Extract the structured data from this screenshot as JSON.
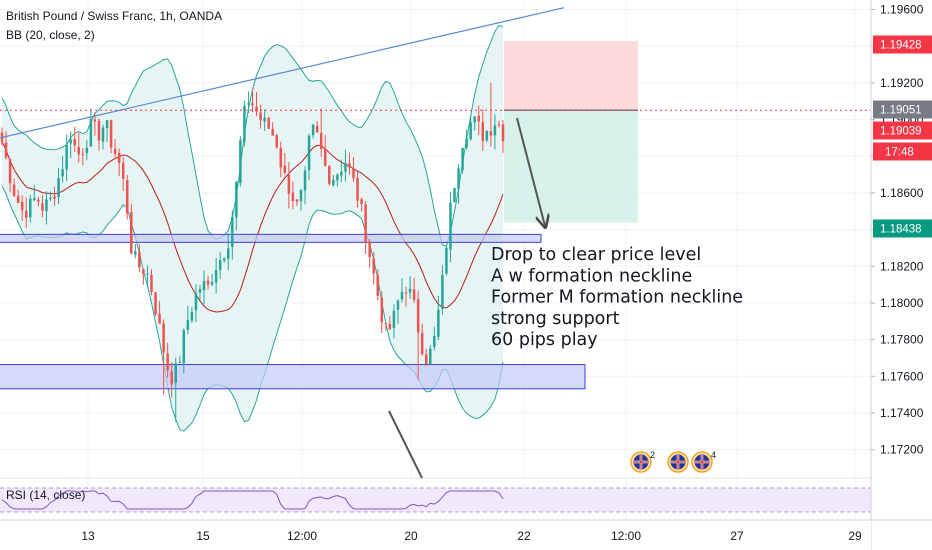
{
  "header": {
    "title": "British Pound / Swiss Franc, 1h, OANDA",
    "indicator": "BB (20, close, 2)"
  },
  "colors": {
    "up": "#26a69a",
    "down": "#ef5350",
    "bb_fill": "#e0f2f1",
    "bb_band": "#26a69a",
    "bb_basis": "#b71c1c",
    "trendline": "#5b86d6",
    "zone_fill": "#c5caf8",
    "zone_stroke": "#3b3fd1",
    "loss_zone": "#fbd3d3",
    "profit_zone": "#d5efe9",
    "rsi": "#7e57c2",
    "rsi_band": "#f1e8fa"
  },
  "chart_data": {
    "type": "candlestick",
    "instrument": "British Pound / Swiss Franc",
    "interval": "1h",
    "broker": "OANDA",
    "ylim": [
      1.171,
      1.1963
    ],
    "y_ticks": [
      1.196,
      1.194,
      1.192,
      1.19,
      1.188,
      1.186,
      1.184,
      1.182,
      1.18,
      1.178,
      1.176,
      1.174,
      1.172
    ],
    "y_tick_labels": [
      "1.19600",
      "1.19400",
      "1.19200",
      "1.19000",
      "1.18800",
      "1.18600",
      "1.18400",
      "1.18200",
      "1.18000",
      "1.17800",
      "1.17600",
      "1.17400",
      "1.17200"
    ],
    "x_ticks": [
      "13",
      "15",
      "12:00",
      "20",
      "22",
      "12:00",
      "27",
      "29"
    ],
    "close_path": [
      1.1888,
      1.1872,
      1.1858,
      1.185,
      1.1852,
      1.1858,
      1.1852,
      1.1855,
      1.1865,
      1.1878,
      1.1893,
      1.188,
      1.1886,
      1.1896,
      1.1892,
      1.1898,
      1.1887,
      1.1877,
      1.186,
      1.1825,
      1.182,
      1.1818,
      1.1805,
      1.1785,
      1.1766,
      1.1758,
      1.1772,
      1.179,
      1.1802,
      1.181,
      1.1808,
      1.182,
      1.1825,
      1.1835,
      1.1858,
      1.1898,
      1.1912,
      1.1905,
      1.1898,
      1.1895,
      1.1888,
      1.187,
      1.1862,
      1.1852,
      1.1862,
      1.1895,
      1.189,
      1.1875,
      1.1868,
      1.1872,
      1.1878,
      1.1868,
      1.1856,
      1.1838,
      1.1818,
      1.18,
      1.1782,
      1.179,
      1.1805,
      1.181,
      1.1798,
      1.178,
      1.1768,
      1.178,
      1.1805,
      1.1842,
      1.1868,
      1.1888,
      1.1898,
      1.1898,
      1.1892,
      1.1895,
      1.19,
      1.1893
    ],
    "trendline": {
      "from": [
        0,
        1.189
      ],
      "to": [
        564,
        1.1961
      ]
    },
    "support_zones": [
      {
        "top": 1.18374,
        "bottom": 1.18338,
        "x_end": 541
      },
      {
        "top": 1.17664,
        "bottom": 1.17532,
        "x_end": 585
      }
    ],
    "position": {
      "entry": 1.19051,
      "stop": 1.19428,
      "target": 1.18438
    },
    "current_price": 1.19051,
    "rsi": {
      "label": "RSI (14, close)"
    },
    "price_tags": [
      {
        "label": "1.19428",
        "value": 1.19428,
        "bg": "#f23645"
      },
      {
        "label": "1.19051",
        "value": 1.19051,
        "bg": "#787b86"
      },
      {
        "label": "1.19039",
        "value": 1.19039,
        "bg": "#f23645"
      },
      {
        "label": "17:48",
        "value": 1.18965,
        "bg": "#f23645"
      },
      {
        "label": "1.18438",
        "value": 1.18438,
        "bg": "#089981"
      }
    ],
    "annotation_lines": [
      "Drop to clear price level",
      "A w formation neckline",
      "Former M formation neckline",
      "strong support",
      "60 pips play"
    ],
    "event_badges": [
      "2",
      "4"
    ]
  }
}
